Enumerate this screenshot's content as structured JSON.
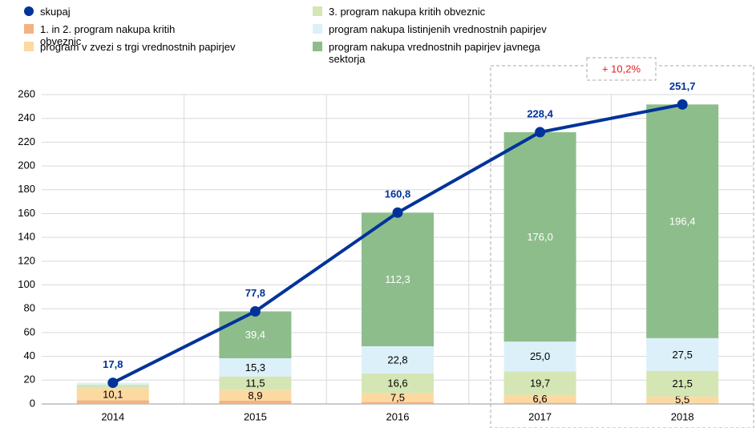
{
  "chart_data": {
    "type": "bar",
    "categories": [
      "2014",
      "2015",
      "2016",
      "2017",
      "2018"
    ],
    "series": [
      {
        "name": "1. in 2. program nakupa kritih obveznic",
        "color": "#f4b183",
        "values": [
          3.0,
          2.7,
          1.6,
          1.1,
          0.8
        ]
      },
      {
        "name": "program v zvezi s trgi vrednostnih papirjev",
        "color": "#fdd9a2",
        "values": [
          10.1,
          8.9,
          7.5,
          6.6,
          5.5
        ],
        "value_labels": [
          "10,1",
          "8,9",
          "7,5",
          "6,6",
          "5,5"
        ]
      },
      {
        "name": "3. program nakupa kritih obveznic",
        "color": "#d5e6b5",
        "values": [
          3.2,
          11.5,
          16.6,
          19.7,
          21.5
        ],
        "value_labels": [
          null,
          "11,5",
          "16,6",
          "19,7",
          "21,5"
        ]
      },
      {
        "name": "program nakupa listinjenih vrednostnih papirjev",
        "color": "#dcf0fa",
        "values": [
          1.5,
          15.3,
          22.8,
          25.0,
          27.5
        ],
        "value_labels": [
          null,
          "15,3",
          "22,8",
          "25,0",
          "27,5"
        ]
      },
      {
        "name": "program nakupa vrednostnih papirjev javnega sektorja",
        "color": "#8dbd8b",
        "values": [
          0,
          39.4,
          112.3,
          176.0,
          196.4
        ],
        "value_labels": [
          null,
          "39,4",
          "112,3",
          "176,0",
          "196,4"
        ]
      },
      {
        "name": "skupaj",
        "type": "line",
        "color": "#003399",
        "values": [
          17.8,
          77.8,
          160.8,
          228.4,
          251.7
        ],
        "value_labels": [
          "17,8",
          "77,8",
          "160,8",
          "228,4",
          "251,7"
        ]
      }
    ],
    "ylim": [
      0,
      260
    ],
    "yticks": [
      0,
      20,
      40,
      60,
      80,
      100,
      120,
      140,
      160,
      180,
      200,
      220,
      240,
      260
    ],
    "grid": true,
    "stacked": true,
    "annotation": "+ 10,2%"
  }
}
